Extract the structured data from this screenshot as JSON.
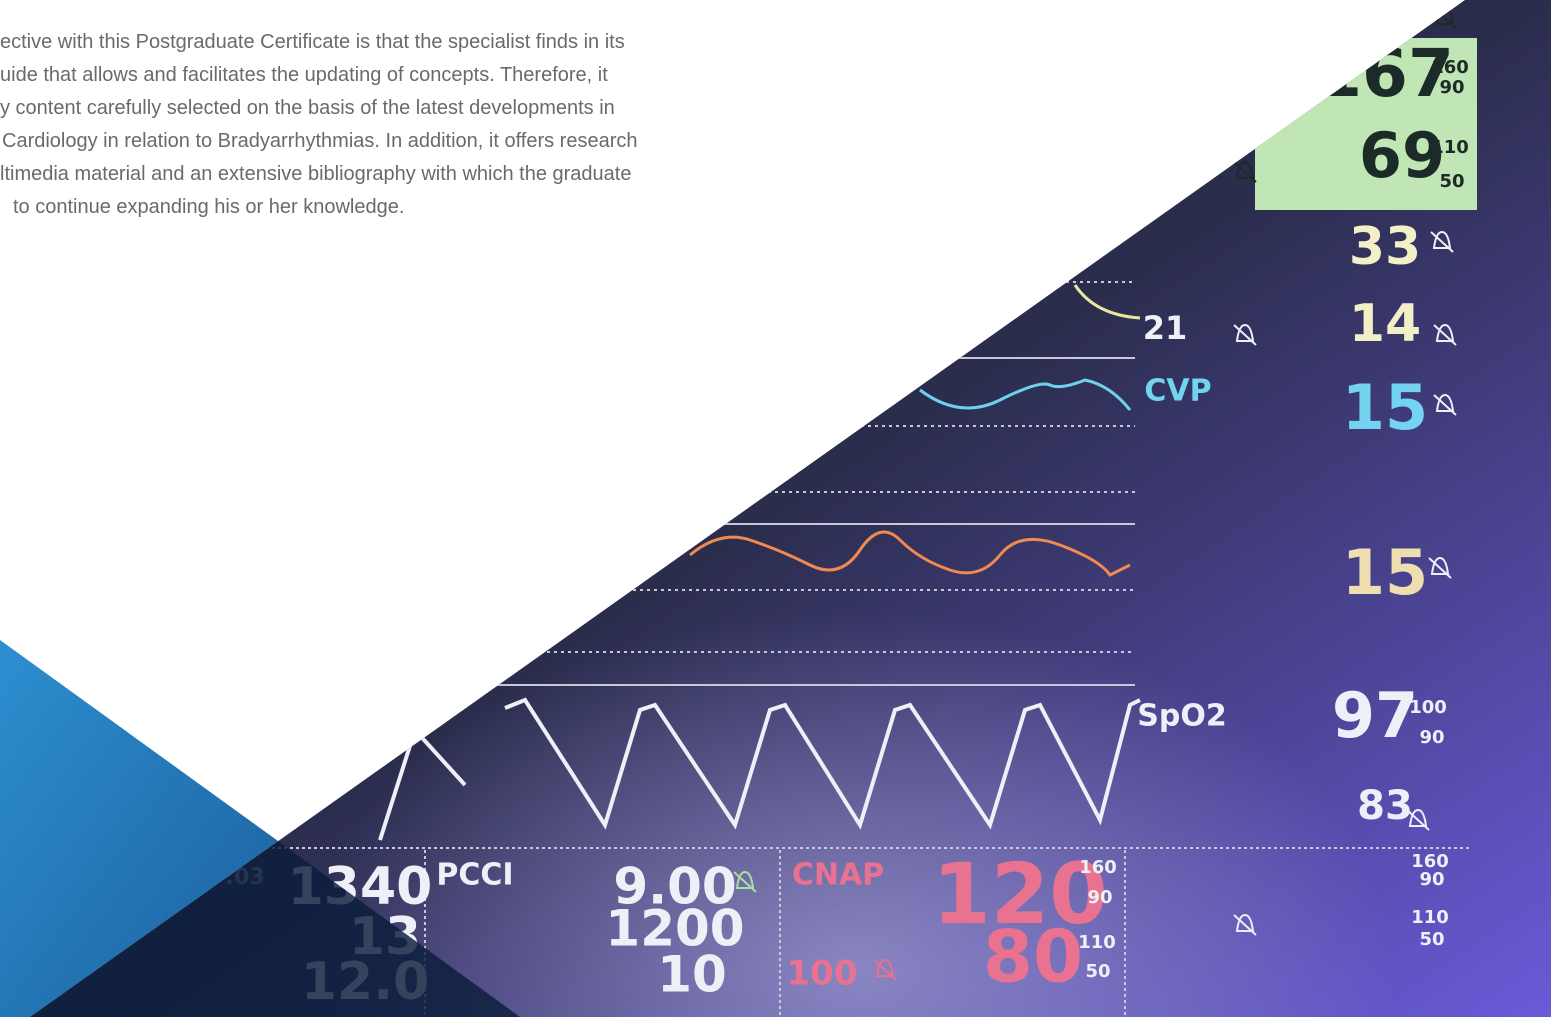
{
  "paragraph": {
    "lines": [
      "ective with this Postgraduate Certificate is that the specialist finds in its",
      "uide that allows and facilitates the updating of concepts. Therefore, it",
      "y content carefully selected on the basis of the latest developments in",
      "Cardiology in relation to Bradyarrhythmias. In addition, it offers research",
      "ltimedia material and an extensive bibliography with which the graduate",
      "to continue expanding his or her knowledge."
    ]
  },
  "monitor": {
    "readings": [
      "167",
      "160",
      "90",
      "69",
      "110",
      "50",
      "33",
      "14",
      "21",
      "CVP",
      "15",
      "15",
      "SpO2",
      "97",
      "100",
      "90",
      "83",
      "160",
      "90",
      "110",
      "50",
      "1340",
      "13",
      "12.0",
      ":03",
      "PCCI",
      "9.00",
      "1200",
      "10",
      "CNAP",
      "120",
      "160",
      "90",
      "80",
      "110",
      "50",
      "100"
    ]
  }
}
